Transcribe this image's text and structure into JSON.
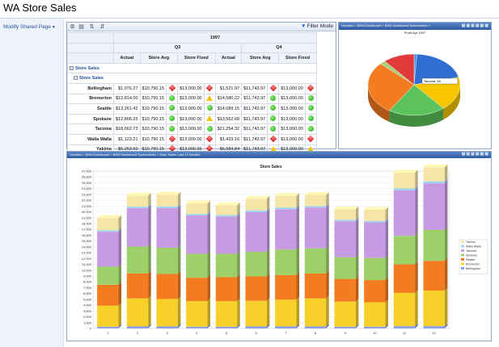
{
  "page": {
    "title": "WA Store Sales"
  },
  "nav": {
    "menu_label": "Modify Shared Page"
  },
  "pivot": {
    "toolbar": {
      "filter_mode": "Filter Mode"
    },
    "year": "1997",
    "quarters": [
      "Q3",
      "Q4"
    ],
    "measures": [
      "Actual",
      "Store Avg",
      "Store Fixed"
    ],
    "group_outer": "Store Sales",
    "group_inner": "Store Sales",
    "rows": [
      {
        "store": "Bellingham",
        "cells": [
          {
            "v": "$1,076.27",
            "k": null
          },
          {
            "v": "$10,790.15",
            "k": "red"
          },
          {
            "v": "$13,000.00",
            "k": "red"
          },
          {
            "v": "$1,521.97",
            "k": null
          },
          {
            "v": "$11,743.97",
            "k": "red"
          },
          {
            "v": "$13,000.00",
            "k": "red"
          }
        ]
      },
      {
        "store": "Bremerton",
        "cells": [
          {
            "v": "$12,814.00",
            "k": null
          },
          {
            "v": "$10,790.15",
            "k": "green"
          },
          {
            "v": "$13,000.00",
            "k": "yellow"
          },
          {
            "v": "$14,580.22",
            "k": null
          },
          {
            "v": "$11,743.97",
            "k": "green"
          },
          {
            "v": "$13,000.00",
            "k": "green"
          }
        ]
      },
      {
        "store": "Seattle",
        "cells": [
          {
            "v": "$13,261.42",
            "k": null
          },
          {
            "v": "$10,790.15",
            "k": "green"
          },
          {
            "v": "$13,000.00",
            "k": "green"
          },
          {
            "v": "$14,089.15",
            "k": null
          },
          {
            "v": "$11,743.97",
            "k": "green"
          },
          {
            "v": "$13,000.00",
            "k": "green"
          }
        ]
      },
      {
        "store": "Spokane",
        "cells": [
          {
            "v": "$12,806.25",
            "k": null
          },
          {
            "v": "$10,790.15",
            "k": "green"
          },
          {
            "v": "$13,000.00",
            "k": "yellow"
          },
          {
            "v": "$13,562.68",
            "k": null
          },
          {
            "v": "$11,743.97",
            "k": "green"
          },
          {
            "v": "$13,000.00",
            "k": "green"
          }
        ]
      },
      {
        "store": "Tacoma",
        "cells": [
          {
            "v": "$18,662.73",
            "k": null
          },
          {
            "v": "$10,790.15",
            "k": "green"
          },
          {
            "v": "$13,000.00",
            "k": "green"
          },
          {
            "v": "$21,254.32",
            "k": null
          },
          {
            "v": "$11,743.97",
            "k": "green"
          },
          {
            "v": "$13,000.00",
            "k": "green"
          }
        ]
      },
      {
        "store": "Walla Walla",
        "cells": [
          {
            "v": "$1,123.21",
            "k": null
          },
          {
            "v": "$10,790.15",
            "k": "red"
          },
          {
            "v": "$13,000.00",
            "k": "red"
          },
          {
            "v": "$1,423.16",
            "k": null
          },
          {
            "v": "$11,743.97",
            "k": "red"
          },
          {
            "v": "$13,000.00",
            "k": "red"
          }
        ]
      },
      {
        "store": "Yakima",
        "cells": [
          {
            "v": "$5,253.50",
            "k": null
          },
          {
            "v": "$10,790.15",
            "k": "red"
          },
          {
            "v": "$13,000.00",
            "k": "red"
          },
          {
            "v": "$6,584.84",
            "k": null
          },
          {
            "v": "$11,743.97",
            "k": "yellow"
          },
          {
            "v": "$13,000.00",
            "k": "yellow"
          }
        ]
      }
    ]
  },
  "pie_part": {
    "crumb": "Libraries > BSM Dashboard > BSM Dashboard Screenshots >",
    "title": "Profit Apr 1997"
  },
  "bar_part": {
    "crumb": "Libraries > BSM Dashboard > BSM Dashboard Screenshots > Store Sales, Last 12 Months"
  },
  "chart_data": [
    {
      "type": "pie",
      "title": "Profit Apr 1997",
      "labels": [
        "Bellingham",
        "Bremerton",
        "Seattle",
        "Spokane",
        "Tacoma",
        "Walla Walla",
        "Yakima"
      ],
      "values": [
        1,
        20,
        18,
        20,
        28,
        2,
        11
      ],
      "colors": [
        "#4a90e2",
        "#2e6fd1",
        "#f7c600",
        "#5cc25c",
        "#f47c20",
        "#a6cf78",
        "#e03a3a"
      ]
    },
    {
      "type": "bar",
      "stacked": true,
      "title": "Store Sales",
      "categories": [
        "1",
        "2",
        "3",
        "4",
        "5",
        "6",
        "7",
        "8",
        "9",
        "10",
        "11",
        "12"
      ],
      "ylim": [
        0,
        27000
      ],
      "yticks": [
        0,
        1000,
        2000,
        3000,
        4000,
        5000,
        6000,
        7000,
        8000,
        9000,
        10000,
        11000,
        12000,
        13000,
        14000,
        15000,
        16000,
        17000,
        18000,
        19000,
        20000,
        21000,
        22000,
        23000,
        24000,
        25000,
        26000,
        27000
      ],
      "ytick_labels": [
        "0",
        "1,000",
        "2,000",
        "3,000",
        "4,000",
        "5,000",
        "6,000",
        "7,000",
        "8,000",
        "9,000",
        "10,000",
        "11,000",
        "12,000",
        "13,000",
        "14,000",
        "15,000",
        "16,000",
        "17,000",
        "18,000",
        "19,000",
        "20,000",
        "21,000",
        "22,000",
        "23,000",
        "24,000",
        "25,000",
        "26,000",
        "27,000"
      ],
      "legend_position": "right",
      "series": [
        {
          "name": "Bellingham",
          "color": "#8aa0e8",
          "values": [
            300,
            350,
            350,
            300,
            300,
            350,
            350,
            350,
            300,
            300,
            400,
            400
          ]
        },
        {
          "name": "Bremerton",
          "color": "#f7d12a",
          "values": [
            3600,
            4800,
            4700,
            4400,
            4400,
            4400,
            4600,
            4800,
            4300,
            4200,
            5700,
            6100
          ]
        },
        {
          "name": "Seattle",
          "color": "#f47c20",
          "values": [
            3600,
            4300,
            4300,
            4000,
            4100,
            4200,
            4200,
            4300,
            3900,
            3800,
            4900,
            5100
          ]
        },
        {
          "name": "Spokane",
          "color": "#9ed06a",
          "values": [
            3100,
            4600,
            4500,
            4100,
            4000,
            4200,
            4400,
            4300,
            3700,
            3800,
            4900,
            5300
          ]
        },
        {
          "name": "Tacoma",
          "color": "#c79be3",
          "values": [
            6000,
            6600,
            6800,
            6600,
            6400,
            6800,
            6900,
            7000,
            6200,
            6100,
            7800,
            8000
          ]
        },
        {
          "name": "Walla Walla",
          "color": "#9fd3ee",
          "values": [
            250,
            250,
            300,
            250,
            250,
            300,
            300,
            250,
            250,
            250,
            350,
            350
          ]
        },
        {
          "name": "Yakima",
          "color": "#f5e6a8",
          "values": [
            2100,
            1900,
            2000,
            1800,
            1700,
            2000,
            2000,
            1900,
            1800,
            1900,
            2700,
            2400
          ]
        }
      ]
    }
  ]
}
